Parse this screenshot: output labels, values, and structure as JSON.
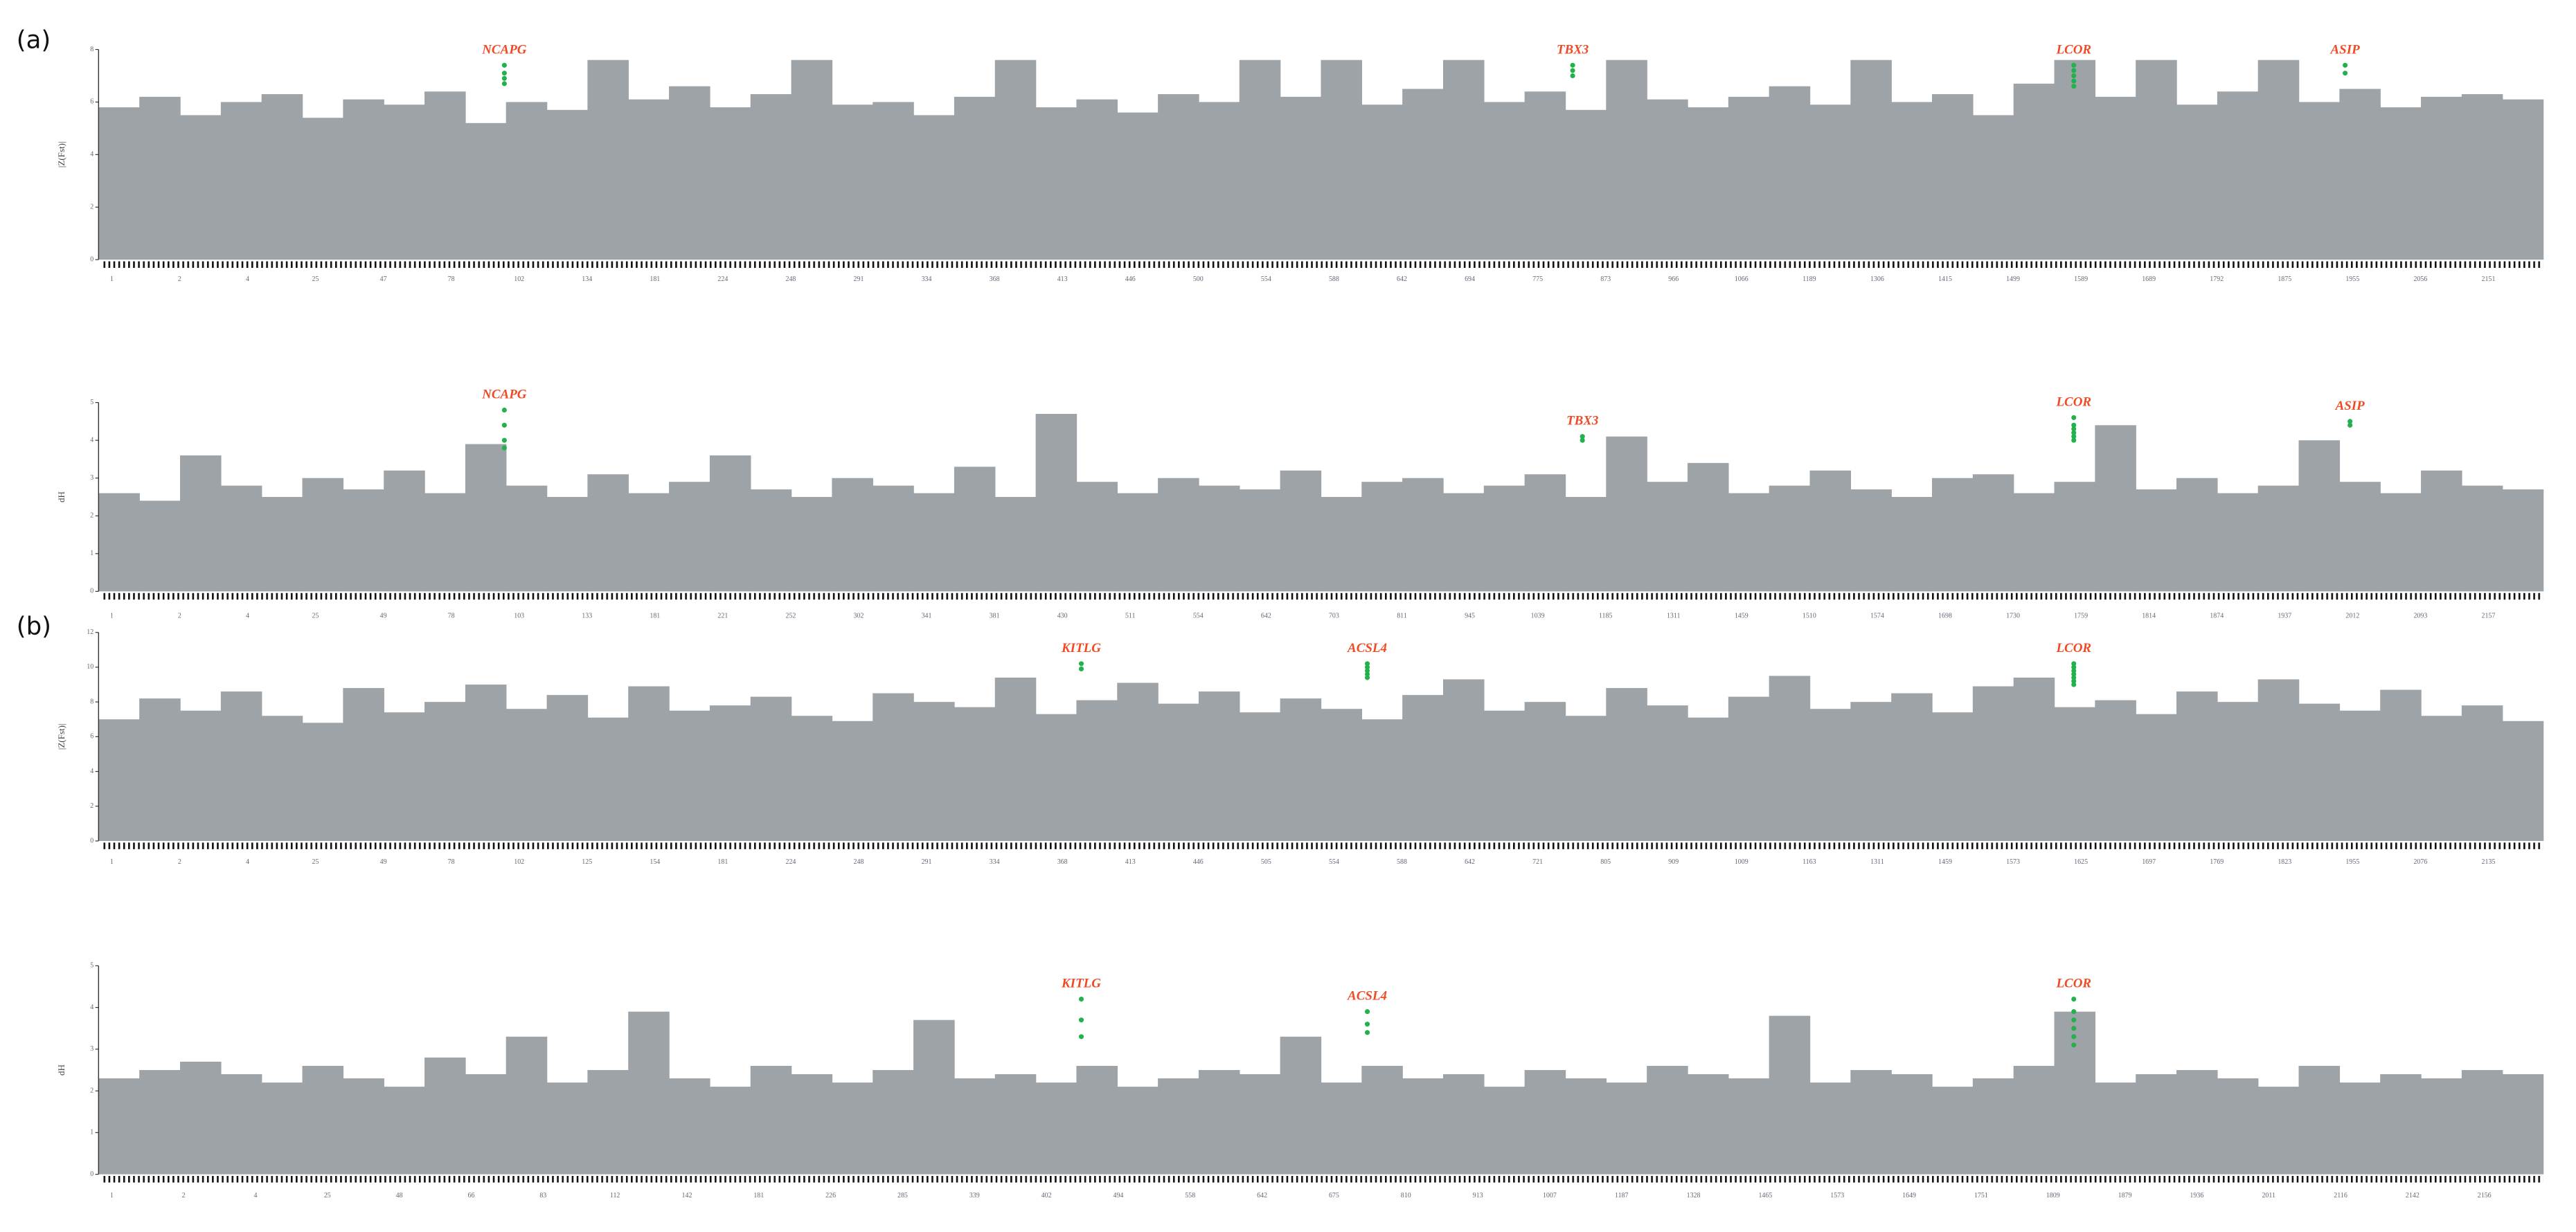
{
  "chart_data": [
    {
      "type": "manhattan",
      "panel": "(a)",
      "ylabel": "|Z(Fst)|",
      "ylim": [
        0,
        8
      ],
      "yticks": [
        0,
        2,
        4,
        6,
        8
      ],
      "xlim": [
        0,
        100
      ],
      "point_color": "#9ea3a8",
      "highlight_color": "#22b14c",
      "label_color": "#f04a24",
      "background_values": [
        5.8,
        6.2,
        5.5,
        6.0,
        6.3,
        5.4,
        6.1,
        5.9,
        6.4,
        5.2,
        6.0,
        5.7,
        7.6,
        6.1,
        6.6,
        5.8,
        6.3,
        7.6,
        5.9,
        6.0,
        5.5,
        6.2,
        7.6,
        5.8,
        6.1,
        5.6,
        6.3,
        6.0,
        7.6,
        6.2,
        7.6,
        5.9,
        6.5,
        7.6,
        6.0,
        6.4,
        5.7,
        7.6,
        6.1,
        5.8,
        6.2,
        6.6,
        5.9,
        7.6,
        6.0,
        6.3,
        5.5,
        6.7,
        7.6,
        6.2,
        7.6,
        5.9,
        6.4,
        7.6,
        6.0,
        6.5,
        5.8,
        6.2,
        6.3,
        6.1
      ],
      "categories": [
        "1",
        "2",
        "4",
        "25",
        "47",
        "78",
        "102",
        "134",
        "181",
        "224",
        "248",
        "291",
        "334",
        "368",
        "413",
        "446",
        "500",
        "554",
        "588",
        "642",
        "694",
        "775",
        "873",
        "966",
        "1066",
        "1189",
        "1306",
        "1415",
        "1499",
        "1589",
        "1689",
        "1792",
        "1875",
        "1955",
        "2056",
        "2151"
      ],
      "genes": [
        {
          "label": "NCAPG",
          "x": 16.6,
          "values": [
            7.4,
            7.1,
            6.9,
            6.7
          ]
        },
        {
          "label": "TBX3",
          "x": 60.3,
          "values": [
            7.4,
            7.2,
            7.0
          ]
        },
        {
          "label": "LCOR",
          "x": 80.8,
          "values": [
            7.4,
            7.2,
            7.0,
            6.8,
            6.6
          ]
        },
        {
          "label": "ASIP",
          "x": 91.9,
          "values": [
            7.4,
            7.1
          ]
        }
      ]
    },
    {
      "type": "manhattan",
      "ylabel": "dH",
      "ylim": [
        0,
        5
      ],
      "yticks": [
        0,
        1,
        2,
        3,
        4,
        5
      ],
      "xlim": [
        0,
        100
      ],
      "point_color": "#9ea3a8",
      "highlight_color": "#22b14c",
      "label_color": "#f04a24",
      "background_values": [
        2.6,
        2.4,
        3.6,
        2.8,
        2.5,
        3.0,
        2.7,
        3.2,
        2.6,
        3.9,
        2.8,
        2.5,
        3.1,
        2.6,
        2.9,
        3.6,
        2.7,
        2.5,
        3.0,
        2.8,
        2.6,
        3.3,
        2.5,
        4.7,
        2.9,
        2.6,
        3.0,
        2.8,
        2.7,
        3.2,
        2.5,
        2.9,
        3.0,
        2.6,
        2.8,
        3.1,
        2.5,
        4.1,
        2.9,
        3.4,
        2.6,
        2.8,
        3.2,
        2.7,
        2.5,
        3.0,
        3.1,
        2.6,
        2.9,
        4.4,
        2.7,
        3.0,
        2.6,
        2.8,
        4.0,
        2.9,
        2.6,
        3.2,
        2.8,
        2.7
      ],
      "categories": [
        "1",
        "2",
        "4",
        "25",
        "49",
        "78",
        "103",
        "133",
        "181",
        "221",
        "252",
        "302",
        "341",
        "381",
        "430",
        "511",
        "554",
        "642",
        "703",
        "811",
        "945",
        "1039",
        "1185",
        "1311",
        "1459",
        "1510",
        "1574",
        "1698",
        "1730",
        "1759",
        "1814",
        "1874",
        "1937",
        "2012",
        "2093",
        "2157"
      ],
      "genes": [
        {
          "label": "NCAPG",
          "x": 16.6,
          "values": [
            4.8,
            4.4,
            4.0,
            3.8
          ]
        },
        {
          "label": "TBX3",
          "x": 60.7,
          "values": [
            4.1,
            4.0
          ]
        },
        {
          "label": "LCOR",
          "x": 80.8,
          "values": [
            4.6,
            4.4,
            4.3,
            4.2,
            4.1,
            4.0
          ]
        },
        {
          "label": "ASIP",
          "x": 92.1,
          "values": [
            4.5,
            4.4
          ]
        }
      ]
    },
    {
      "type": "manhattan",
      "panel": "(b)",
      "ylabel": "|Z(Fst)|",
      "ylim": [
        0,
        12
      ],
      "yticks": [
        0,
        2,
        4,
        6,
        8,
        10,
        12
      ],
      "xlim": [
        0,
        100
      ],
      "point_color": "#9ea3a8",
      "highlight_color": "#22b14c",
      "label_color": "#f04a24",
      "background_values": [
        7.0,
        8.2,
        7.5,
        8.6,
        7.2,
        6.8,
        8.8,
        7.4,
        8.0,
        9.0,
        7.6,
        8.4,
        7.1,
        8.9,
        7.5,
        7.8,
        8.3,
        7.2,
        6.9,
        8.5,
        8.0,
        7.7,
        9.4,
        7.3,
        8.1,
        9.1,
        7.9,
        8.6,
        7.4,
        8.2,
        7.6,
        7.0,
        8.4,
        9.3,
        7.5,
        8.0,
        7.2,
        8.8,
        7.8,
        7.1,
        8.3,
        9.5,
        7.6,
        8.0,
        8.5,
        7.4,
        8.9,
        9.4,
        7.7,
        8.1,
        7.3,
        8.6,
        8.0,
        9.3,
        7.9,
        7.5,
        8.7,
        7.2,
        7.8,
        6.9
      ],
      "categories": [
        "1",
        "2",
        "4",
        "25",
        "49",
        "78",
        "102",
        "125",
        "154",
        "181",
        "224",
        "248",
        "291",
        "334",
        "368",
        "413",
        "446",
        "505",
        "554",
        "588",
        "642",
        "721",
        "805",
        "909",
        "1009",
        "1163",
        "1311",
        "1459",
        "1573",
        "1625",
        "1697",
        "1769",
        "1823",
        "1955",
        "2076",
        "2135"
      ],
      "genes": [
        {
          "label": "KITLG",
          "x": 40.2,
          "values": [
            10.2,
            9.9
          ]
        },
        {
          "label": "ACSL4",
          "x": 51.9,
          "values": [
            10.2,
            10.0,
            9.8,
            9.6,
            9.4
          ]
        },
        {
          "label": "LCOR",
          "x": 80.8,
          "values": [
            10.2,
            10.0,
            9.8,
            9.6,
            9.4,
            9.2,
            9.0
          ]
        }
      ]
    },
    {
      "type": "manhattan",
      "ylabel": "dH",
      "ylim": [
        0,
        5
      ],
      "yticks": [
        0,
        1,
        2,
        3,
        4,
        5
      ],
      "xlim": [
        0,
        100
      ],
      "point_color": "#9ea3a8",
      "highlight_color": "#22b14c",
      "label_color": "#f04a24",
      "background_values": [
        2.3,
        2.5,
        2.7,
        2.4,
        2.2,
        2.6,
        2.3,
        2.1,
        2.8,
        2.4,
        3.3,
        2.2,
        2.5,
        3.9,
        2.3,
        2.1,
        2.6,
        2.4,
        2.2,
        2.5,
        3.7,
        2.3,
        2.4,
        2.2,
        2.6,
        2.1,
        2.3,
        2.5,
        2.4,
        3.3,
        2.2,
        2.6,
        2.3,
        2.4,
        2.1,
        2.5,
        2.3,
        2.2,
        2.6,
        2.4,
        2.3,
        3.8,
        2.2,
        2.5,
        2.4,
        2.1,
        2.3,
        2.6,
        3.9,
        2.2,
        2.4,
        2.5,
        2.3,
        2.1,
        2.6,
        2.2,
        2.4,
        2.3,
        2.5,
        2.4
      ],
      "categories": [
        "1",
        "2",
        "4",
        "25",
        "48",
        "66",
        "83",
        "112",
        "142",
        "181",
        "226",
        "285",
        "339",
        "402",
        "494",
        "558",
        "642",
        "675",
        "810",
        "913",
        "1007",
        "1187",
        "1328",
        "1465",
        "1573",
        "1649",
        "1751",
        "1809",
        "1879",
        "1936",
        "2011",
        "2116",
        "2142",
        "2156"
      ],
      "genes": [
        {
          "label": "KITLG",
          "x": 40.2,
          "values": [
            4.2,
            3.7,
            3.3
          ]
        },
        {
          "label": "ACSL4",
          "x": 51.9,
          "values": [
            3.9,
            3.6,
            3.4
          ]
        },
        {
          "label": "LCOR",
          "x": 80.8,
          "values": [
            4.2,
            3.9,
            3.7,
            3.5,
            3.3,
            3.1
          ]
        }
      ]
    }
  ]
}
